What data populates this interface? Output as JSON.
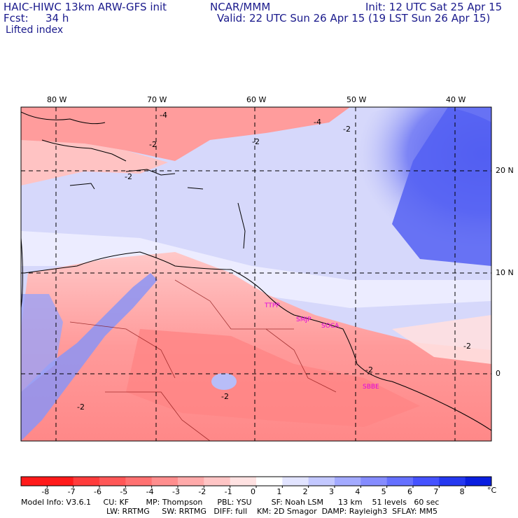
{
  "header": {
    "model_title": "HAIC-HIWC 13km ARW-GFS init",
    "org": "NCAR/MMM",
    "init": "Init: 12 UTC Sat 25 Apr 15",
    "fcst_label": "Fcst:",
    "fcst_value": "34 h",
    "valid": "Valid: 22 UTC Sun 26 Apr 15 (19 LST Sun 26 Apr 15)",
    "field": "Lifted index"
  },
  "map": {
    "longitude_labels": [
      "80 W",
      "70 W",
      "60 W",
      "50 W",
      "40 W"
    ],
    "latitude_labels": [
      "20 N",
      "10 N",
      "0"
    ],
    "contour_labels": [
      "-4",
      "-2",
      "-2",
      "-4",
      "-2",
      "-2",
      "-2",
      "-2",
      "-2",
      "-2"
    ],
    "station_labels": [
      "TTPP",
      "SMJP",
      "SOCA",
      "SBBE"
    ],
    "station_color": "#e000e0"
  },
  "colorbar": {
    "ticks": [
      "-8",
      "-7",
      "-6",
      "-5",
      "-4",
      "-3",
      "-2",
      "-1",
      "0",
      "1",
      "2",
      "3",
      "4",
      "5",
      "6",
      "7",
      "8"
    ],
    "unit": "°C",
    "colors": [
      "#ff1a1a",
      "#ff3c3c",
      "#ff5757",
      "#ff7171",
      "#ff8e8e",
      "#ffaaaa",
      "#ffc5c5",
      "#ffe2e2",
      "#ffffff",
      "#e2e4ff",
      "#c3c8ff",
      "#a3aaff",
      "#858cff",
      "#6570ff",
      "#4552ff",
      "#2538f0",
      "#0a1ee0"
    ]
  },
  "model_info": {
    "line1": "Model Info: V3.6.1     CU: KF       MP: Thompson      PBL: YSU        SF: Noah LSM      13 km    51 levels   60 sec",
    "line2": "LW: RRTMG     SW: RRTMG   DIFF: full    KM: 2D Smagor  DAMP: Rayleigh3  SFLAY: MM5"
  }
}
